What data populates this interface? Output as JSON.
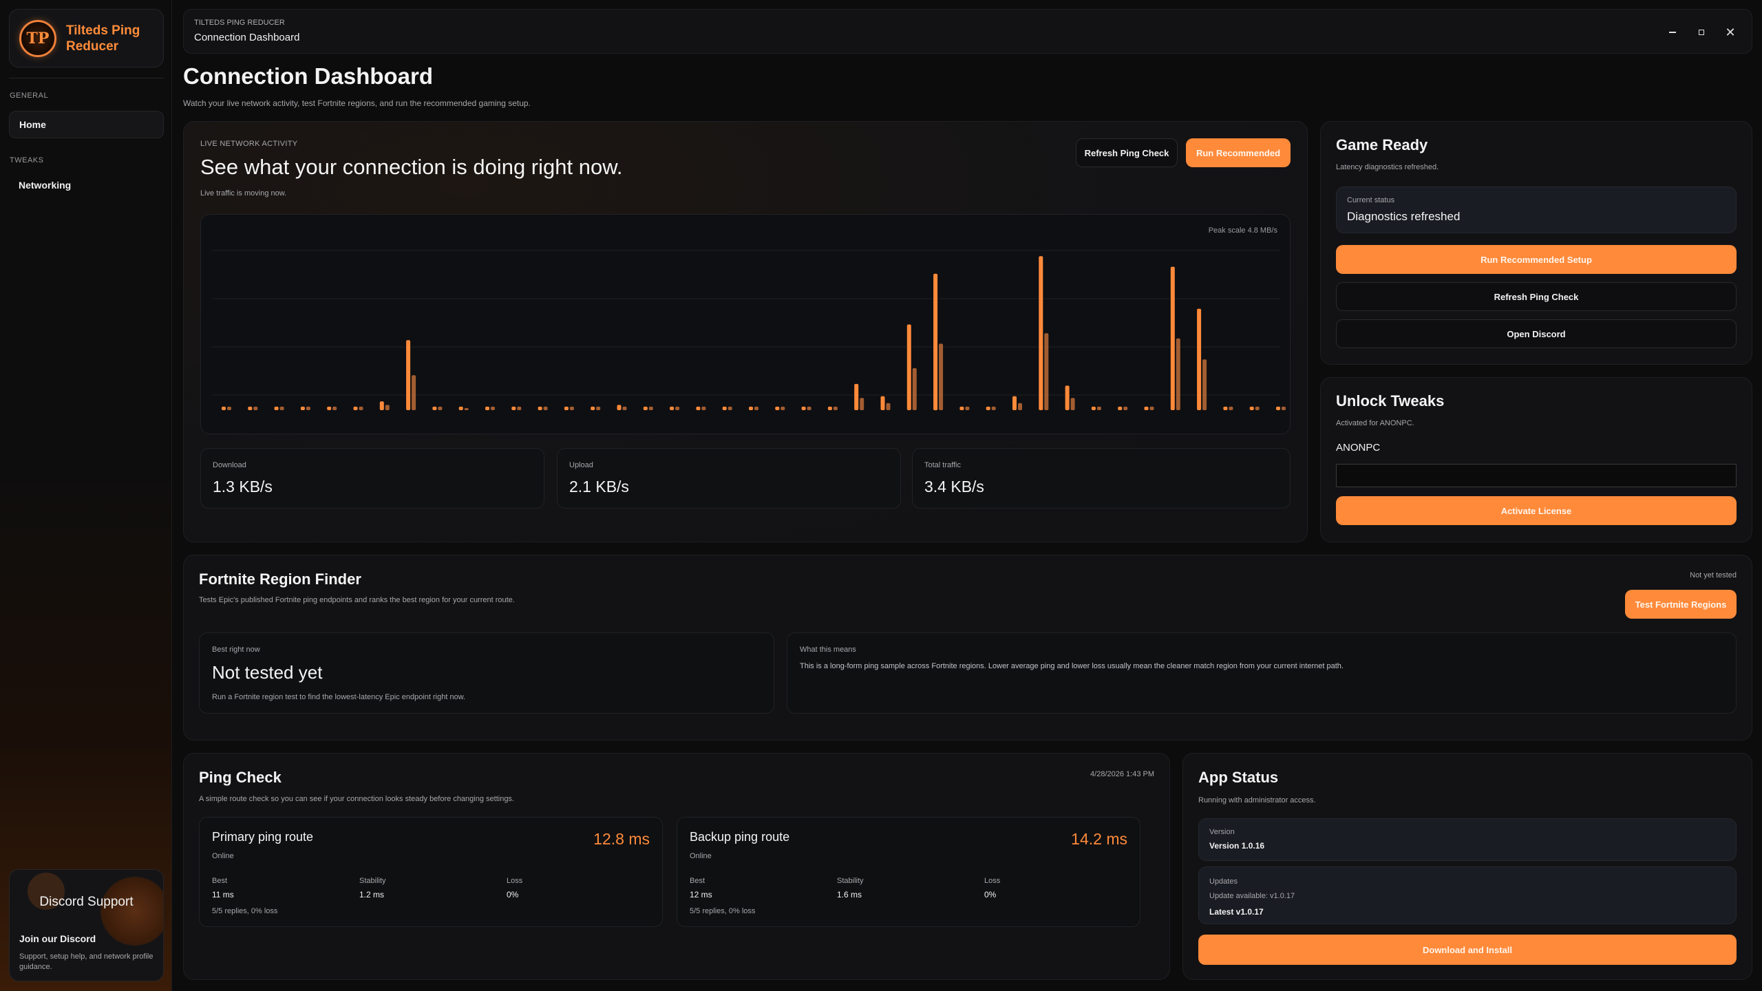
{
  "sidebar": {
    "logo_glyph": "TP",
    "app_name": "Tilteds Ping Reducer",
    "sections": [
      {
        "label": "GENERAL",
        "items": [
          {
            "label": "Home",
            "active": true
          }
        ]
      },
      {
        "label": "TWEAKS",
        "items": [
          {
            "label": "Networking",
            "active": false
          }
        ]
      }
    ],
    "discord_card": {
      "title": "Discord Support",
      "subtitle": "Join our Discord",
      "description": "Support, setup help, and network profile guidance."
    }
  },
  "topbar": {
    "app_label": "TILTEDS PING REDUCER",
    "breadcrumb": "Connection Dashboard",
    "window_controls": [
      "minimize-icon",
      "maximize-icon",
      "close-icon"
    ]
  },
  "header": {
    "title": "Connection Dashboard",
    "subtitle": "Watch your live network activity, test Fortnite regions, and run the recommended gaming setup."
  },
  "live": {
    "eyebrow": "LIVE NETWORK ACTIVITY",
    "headline": "See what your connection is doing right now.",
    "status": "Live traffic is moving now.",
    "refresh_button": "Refresh Ping Check",
    "run_button": "Run Recommended",
    "peak_label": "Peak scale 4.8 MB/s",
    "metrics": [
      {
        "label": "Download",
        "value": "1.3 KB/s"
      },
      {
        "label": "Upload",
        "value": "2.1 KB/s"
      },
      {
        "label": "Total traffic",
        "value": "3.4 KB/s"
      }
    ]
  },
  "chart_data": {
    "type": "bar",
    "peak_label": "Peak scale 4.8 MB/s",
    "ylim": [
      0,
      4.8
    ],
    "grid": true,
    "series": [
      {
        "color": "#ff8a3a",
        "values": [
          0.1,
          0.1,
          0.1,
          0.1,
          0.1,
          0.1,
          0.25,
          2.0,
          0.1,
          0.1,
          0.1,
          0.1,
          0.1,
          0.1,
          0.1,
          0.15,
          0.1,
          0.1,
          0.1,
          0.1,
          0.1,
          0.1,
          0.1,
          0.1,
          0.75,
          0.4,
          2.45,
          3.9,
          0.1,
          0.1,
          0.4,
          4.4,
          0.7,
          0.1,
          0.1,
          0.1,
          4.1,
          2.9,
          0.1,
          0.1,
          0.1
        ]
      },
      {
        "color": "#c8703a",
        "values": [
          0.1,
          0.1,
          0.1,
          0.1,
          0.1,
          0.1,
          0.15,
          1.0,
          0.1,
          0.03,
          0.1,
          0.1,
          0.1,
          0.1,
          0.1,
          0.1,
          0.1,
          0.1,
          0.1,
          0.1,
          0.1,
          0.1,
          0.1,
          0.1,
          0.35,
          0.2,
          1.2,
          1.9,
          0.1,
          0.1,
          0.2,
          2.2,
          0.35,
          0.1,
          0.1,
          0.1,
          2.05,
          1.45,
          0.1,
          0.1,
          0.1
        ]
      }
    ]
  },
  "game_ready": {
    "title": "Game Ready",
    "subtitle": "Latency diagnostics refreshed.",
    "status_label": "Current status",
    "status_value": "Diagnostics refreshed",
    "primary_button": "Run Recommended Setup",
    "refresh_button": "Refresh Ping Check",
    "discord_button": "Open Discord"
  },
  "unlock": {
    "title": "Unlock Tweaks",
    "subtitle": "Activated for ANONPC.",
    "license_name": "ANONPC",
    "input_value": "",
    "button": "Activate License"
  },
  "region": {
    "title": "Fortnite Region Finder",
    "subtitle": "Tests Epic's published Fortnite ping endpoints and ranks the best region for your current route.",
    "status": "Not yet tested",
    "button": "Test Fortnite Regions",
    "best_label": "Best right now",
    "best_value": "Not tested yet",
    "best_hint": "Run a Fortnite region test to find the lowest-latency Epic endpoint right now.",
    "meaning_label": "What this means",
    "meaning_text": "This is a long-form ping sample across Fortnite regions. Lower average ping and lower loss usually mean the cleaner match region from your current internet path."
  },
  "ping_check": {
    "title": "Ping Check",
    "subtitle": "A simple route check so you can see if your connection looks steady before changing settings.",
    "timestamp": "4/28/2026 1:43 PM",
    "routes": [
      {
        "name": "Primary ping route",
        "ms": "12.8 ms",
        "status": "Online",
        "stats": [
          {
            "label": "Best",
            "value": "11 ms"
          },
          {
            "label": "Stability",
            "value": "1.2 ms"
          },
          {
            "label": "Loss",
            "value": "0%"
          }
        ],
        "replies": "5/5 replies, 0% loss"
      },
      {
        "name": "Backup ping route",
        "ms": "14.2 ms",
        "status": "Online",
        "stats": [
          {
            "label": "Best",
            "value": "12 ms"
          },
          {
            "label": "Stability",
            "value": "1.6 ms"
          },
          {
            "label": "Loss",
            "value": "0%"
          }
        ],
        "replies": "5/5 replies, 0% loss"
      }
    ]
  },
  "app_status": {
    "title": "App Status",
    "subtitle": "Running with administrator access.",
    "version_label": "Version",
    "version_value": "Version 1.0.16",
    "updates_label": "Updates",
    "updates_line": "Update available: v1.0.17",
    "updates_latest": "Latest v1.0.17",
    "button": "Download and Install"
  },
  "colors": {
    "accent": "#ff8a3a",
    "background": "#0c0c0d",
    "card": "#121214"
  }
}
